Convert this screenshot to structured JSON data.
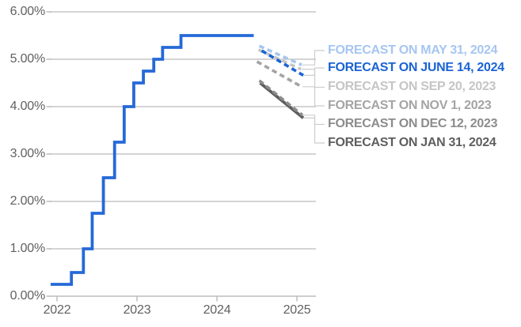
{
  "chart_data": {
    "type": "line",
    "description": "Federal funds target rate history with market forecast paths",
    "grid": true,
    "legend_position": "right",
    "y_axis": {
      "tick_labels": [
        "6.00%",
        "5.00%",
        "4.00%",
        "3.00%",
        "2.00%",
        "1.00%",
        "0.00%"
      ],
      "tick_values": [
        6,
        5,
        4,
        3,
        2,
        1,
        0
      ],
      "range": [
        0,
        6
      ],
      "unit": "%"
    },
    "x_axis": {
      "tick_labels": [
        "2022",
        "2023",
        "2024",
        "2025"
      ],
      "tick_values": [
        2022,
        2023,
        2024,
        2025
      ],
      "range": [
        2021.9,
        2025.25
      ]
    },
    "main_series": {
      "name": "actual-rate",
      "style": "step",
      "color": "#2569D8",
      "rate_changes": [
        [
          2021.92,
          0.25
        ],
        [
          2022.18,
          0.5
        ],
        [
          2022.33,
          1.0
        ],
        [
          2022.44,
          1.75
        ],
        [
          2022.58,
          2.5
        ],
        [
          2022.72,
          3.25
        ],
        [
          2022.84,
          4.0
        ],
        [
          2022.96,
          4.5
        ],
        [
          2023.08,
          4.75
        ],
        [
          2023.21,
          5.0
        ],
        [
          2023.32,
          5.25
        ],
        [
          2023.55,
          5.5
        ]
      ],
      "end_x": 2024.46,
      "end_value": 5.5
    },
    "forecasts": [
      {
        "label": "FORECAST ON MAY 31, 2024",
        "color": "#A6C6F1",
        "line_style": "dashed",
        "start": [
          2024.53,
          5.28
        ],
        "end": [
          2025.06,
          4.88
        ]
      },
      {
        "label": "FORECAST ON JUNE 14, 2024",
        "color": "#1A63D4",
        "line_style": "dashed",
        "start": [
          2024.56,
          5.18
        ],
        "end": [
          2025.08,
          4.66
        ]
      },
      {
        "label": "FORECAST ON SEP 20, 2023",
        "color": "#C5C5C5",
        "line_style": "dashed",
        "start": [
          2024.52,
          5.2
        ],
        "end": [
          2025.05,
          4.79
        ]
      },
      {
        "label": "FORECAST ON NOV 1, 2023",
        "color": "#A4A4A4",
        "line_style": "dashed",
        "start": [
          2024.5,
          4.95
        ],
        "end": [
          2025.06,
          4.42
        ]
      },
      {
        "label": "FORECAST ON DEC 12, 2023",
        "color": "#8C8C8C",
        "line_style": "dashed",
        "start": [
          2024.53,
          4.55
        ],
        "end": [
          2025.07,
          3.82
        ]
      },
      {
        "label": "FORECAST ON JAN 31, 2024",
        "color": "#5E5E5E",
        "line_style": "solid",
        "start": [
          2024.54,
          4.5
        ],
        "end": [
          2025.08,
          3.76
        ]
      }
    ],
    "colors": {
      "gridline": "#C6C6C6",
      "axis_line": "#BDBDBD",
      "tick_mark": "#BDBDBD",
      "axis_text": "#616161",
      "connector": "#CDCDCD",
      "background": "#FFFFFF"
    }
  }
}
